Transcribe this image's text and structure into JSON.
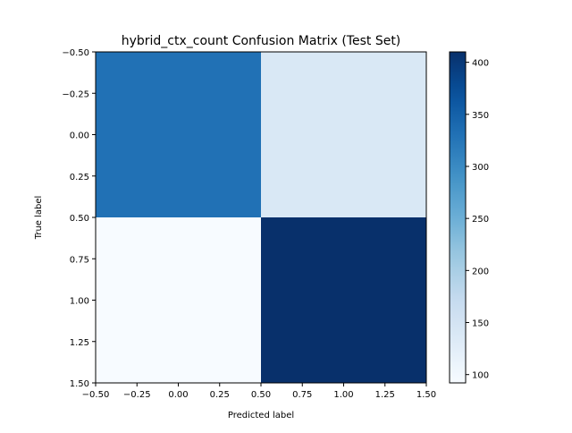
{
  "chart_data": {
    "type": "heatmap",
    "title": "hybrid_ctx_count Confusion Matrix (Test Set)",
    "xlabel": "Predicted label",
    "ylabel": "True label",
    "xlim": [
      -0.5,
      1.5
    ],
    "ylim": [
      1.5,
      -0.5
    ],
    "x_ticks": [
      "−0.50",
      "−0.25",
      "0.00",
      "0.25",
      "0.50",
      "0.75",
      "1.00",
      "1.25",
      "1.50"
    ],
    "y_ticks": [
      "−0.50",
      "−0.25",
      "0.00",
      "0.25",
      "0.50",
      "0.75",
      "1.00",
      "1.25",
      "1.50"
    ],
    "matrix": [
      [
        330,
        140
      ],
      [
        92,
        410
      ]
    ],
    "colormap": "Blues",
    "colorbar": {
      "range": [
        92,
        410
      ],
      "ticks": [
        100,
        150,
        200,
        250,
        300,
        350,
        400
      ]
    },
    "grid": false,
    "legend": "none"
  }
}
